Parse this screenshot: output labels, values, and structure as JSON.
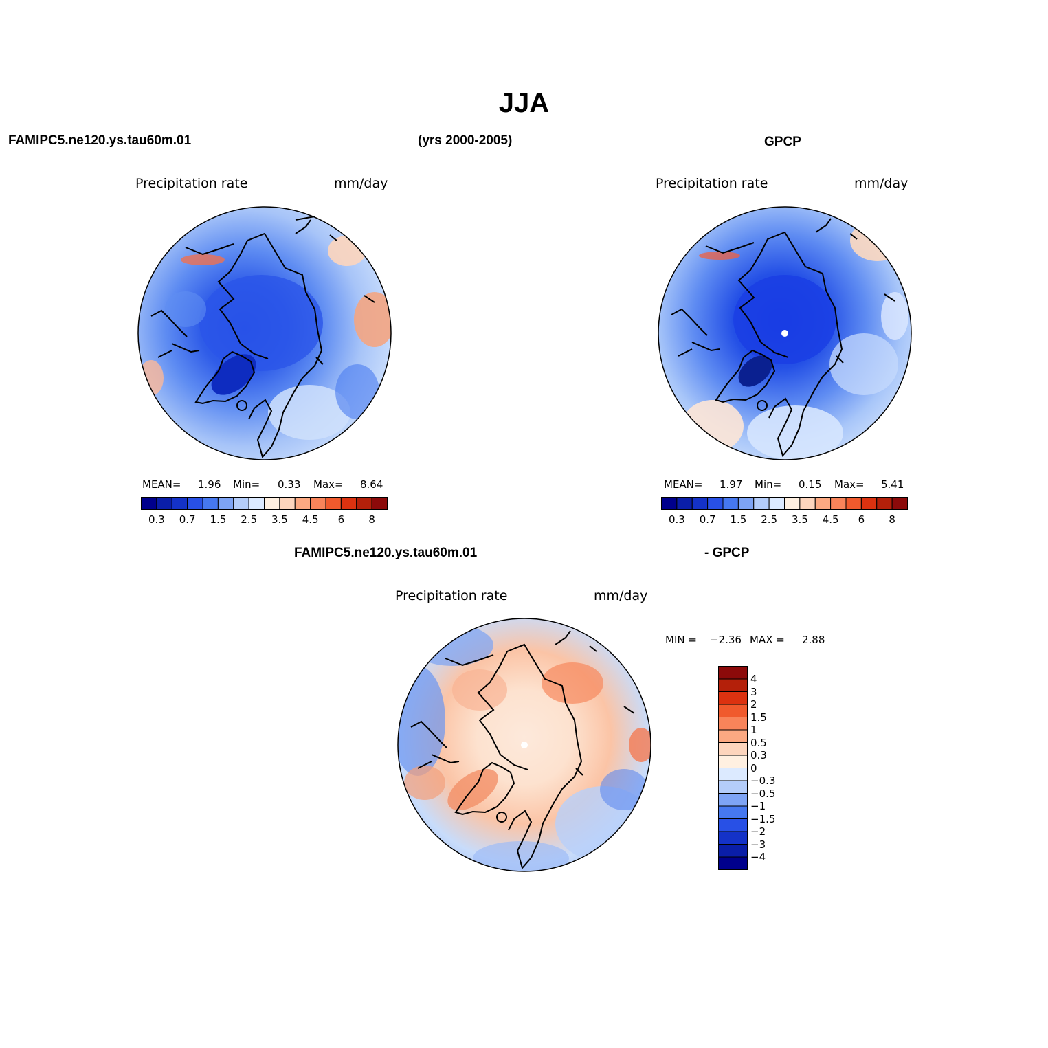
{
  "title": "JJA",
  "header": {
    "left": "FAMIPC5.ne120.ys.tau60m.01",
    "center": "(yrs 2000-2005)",
    "right": "GPCP"
  },
  "diff_header": {
    "left": "FAMIPC5.ne120.ys.tau60m.01",
    "right": "- GPCP"
  },
  "panels": {
    "model": {
      "variable": "Precipitation rate",
      "units": "mm/day",
      "mean_label": "MEAN=",
      "mean": "1.96",
      "min_label": "Min=",
      "min": "0.33",
      "max_label": "Max=",
      "max": "8.64"
    },
    "obs": {
      "variable": "Precipitation rate",
      "units": "mm/day",
      "mean_label": "MEAN=",
      "mean": "1.97",
      "min_label": "Min=",
      "min": "0.15",
      "max_label": "Max=",
      "max": "5.41"
    },
    "diff": {
      "variable": "Precipitation rate",
      "units": "mm/day",
      "min_label": "MIN =",
      "min": "−2.36",
      "max_label": "MAX =",
      "max": "2.88"
    }
  },
  "colorbar_abs": {
    "colors": [
      "#00008c",
      "#0a1ea8",
      "#1432c8",
      "#2850e6",
      "#4678f0",
      "#7ea4f5",
      "#b4cdfa",
      "#dceaff",
      "#fff0e1",
      "#fdd5bd",
      "#fca982",
      "#f8845a",
      "#f05a2d",
      "#dc3210",
      "#b4200a",
      "#8c0a0a"
    ],
    "ticks": [
      "0.3",
      "0.7",
      "1.5",
      "2.5",
      "3.5",
      "4.5",
      "6",
      "8"
    ]
  },
  "colorbar_diff": {
    "colors": [
      "#8c0a0a",
      "#b4200a",
      "#dc3210",
      "#f05a2d",
      "#f8845a",
      "#fca982",
      "#fdd5bd",
      "#fff0e1",
      "#dceaff",
      "#b4cdfa",
      "#7ea4f5",
      "#4678f0",
      "#2850e6",
      "#1432c8",
      "#0a1ea8",
      "#00008c"
    ],
    "ticks": [
      "4",
      "3",
      "2",
      "1.5",
      "1",
      "0.5",
      "0.3",
      "0",
      "−0.3",
      "−0.5",
      "−1",
      "−1.5",
      "−2",
      "−3",
      "−4"
    ]
  }
}
